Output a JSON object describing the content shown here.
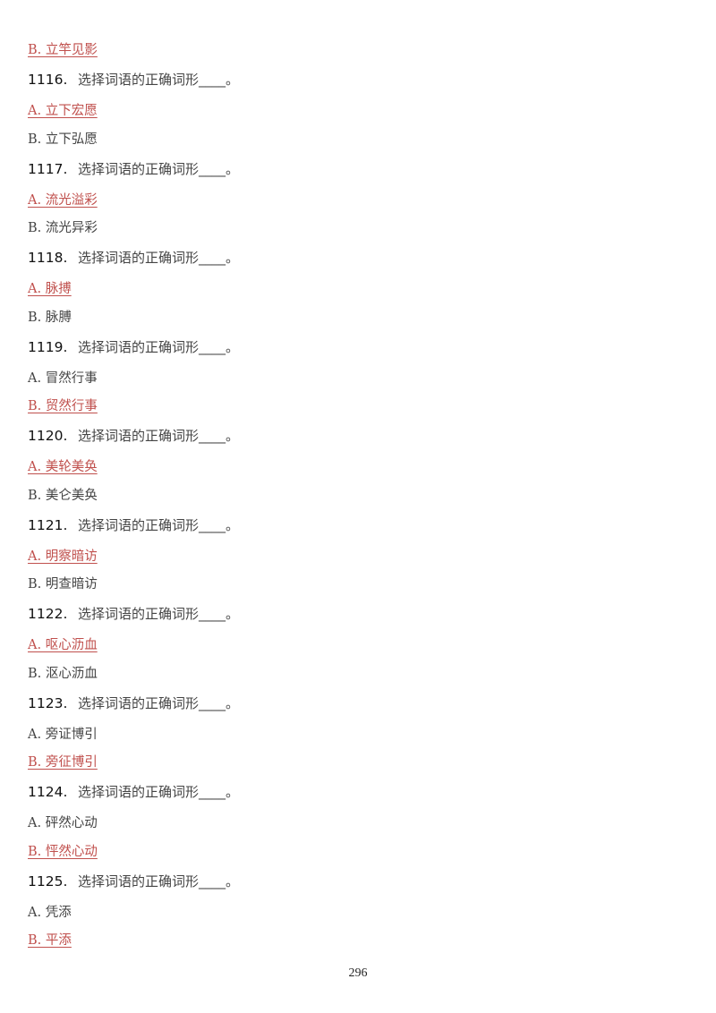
{
  "colors": {
    "answer": "#c0504d",
    "text": "#444444"
  },
  "lines": [
    {
      "type": "option",
      "text": "B. 立竿见影",
      "correct": true
    },
    {
      "type": "question",
      "number": "1116.",
      "text": "选择词语的正确词形____。"
    },
    {
      "type": "option",
      "text": "A. 立下宏愿",
      "correct": true
    },
    {
      "type": "option",
      "text": "B. 立下弘愿",
      "correct": false
    },
    {
      "type": "question",
      "number": "1117.",
      "text": "选择词语的正确词形____。"
    },
    {
      "type": "option",
      "text": "A. 流光溢彩",
      "correct": true
    },
    {
      "type": "option",
      "text": "B. 流光异彩",
      "correct": false
    },
    {
      "type": "question",
      "number": "1118.",
      "text": "选择词语的正确词形____。"
    },
    {
      "type": "option",
      "text": "A. 脉搏",
      "correct": true
    },
    {
      "type": "option",
      "text": "B. 脉膊",
      "correct": false
    },
    {
      "type": "question",
      "number": "1119.",
      "text": "选择词语的正确词形____。"
    },
    {
      "type": "option",
      "text": "A. 冒然行事",
      "correct": false
    },
    {
      "type": "option",
      "text": "B. 贸然行事",
      "correct": true
    },
    {
      "type": "question",
      "number": "1120.",
      "text": "选择词语的正确词形____。"
    },
    {
      "type": "option",
      "text": "A. 美轮美奂",
      "correct": true
    },
    {
      "type": "option",
      "text": "B. 美仑美奂",
      "correct": false
    },
    {
      "type": "question",
      "number": "1121.",
      "text": "选择词语的正确词形____。"
    },
    {
      "type": "option",
      "text": "A. 明察暗访",
      "correct": true
    },
    {
      "type": "option",
      "text": "B. 明查暗访",
      "correct": false
    },
    {
      "type": "question",
      "number": "1122.",
      "text": "选择词语的正确词形____。"
    },
    {
      "type": "option",
      "text": "A. 呕心沥血",
      "correct": true
    },
    {
      "type": "option",
      "text": "B. 沤心沥血",
      "correct": false
    },
    {
      "type": "question",
      "number": "1123.",
      "text": "选择词语的正确词形____。"
    },
    {
      "type": "option",
      "text": "A. 旁证博引",
      "correct": false
    },
    {
      "type": "option",
      "text": "B. 旁征博引",
      "correct": true
    },
    {
      "type": "question",
      "number": "1124.",
      "text": "选择词语的正确词形____。"
    },
    {
      "type": "option",
      "text": "A. 砰然心动",
      "correct": false
    },
    {
      "type": "option",
      "text": "B. 怦然心动",
      "correct": true
    },
    {
      "type": "question",
      "number": "1125.",
      "text": "选择词语的正确词形____。"
    },
    {
      "type": "option",
      "text": "A. 凭添",
      "correct": false
    },
    {
      "type": "option",
      "text": "B. 平添",
      "correct": true
    }
  ],
  "page_number": "296"
}
